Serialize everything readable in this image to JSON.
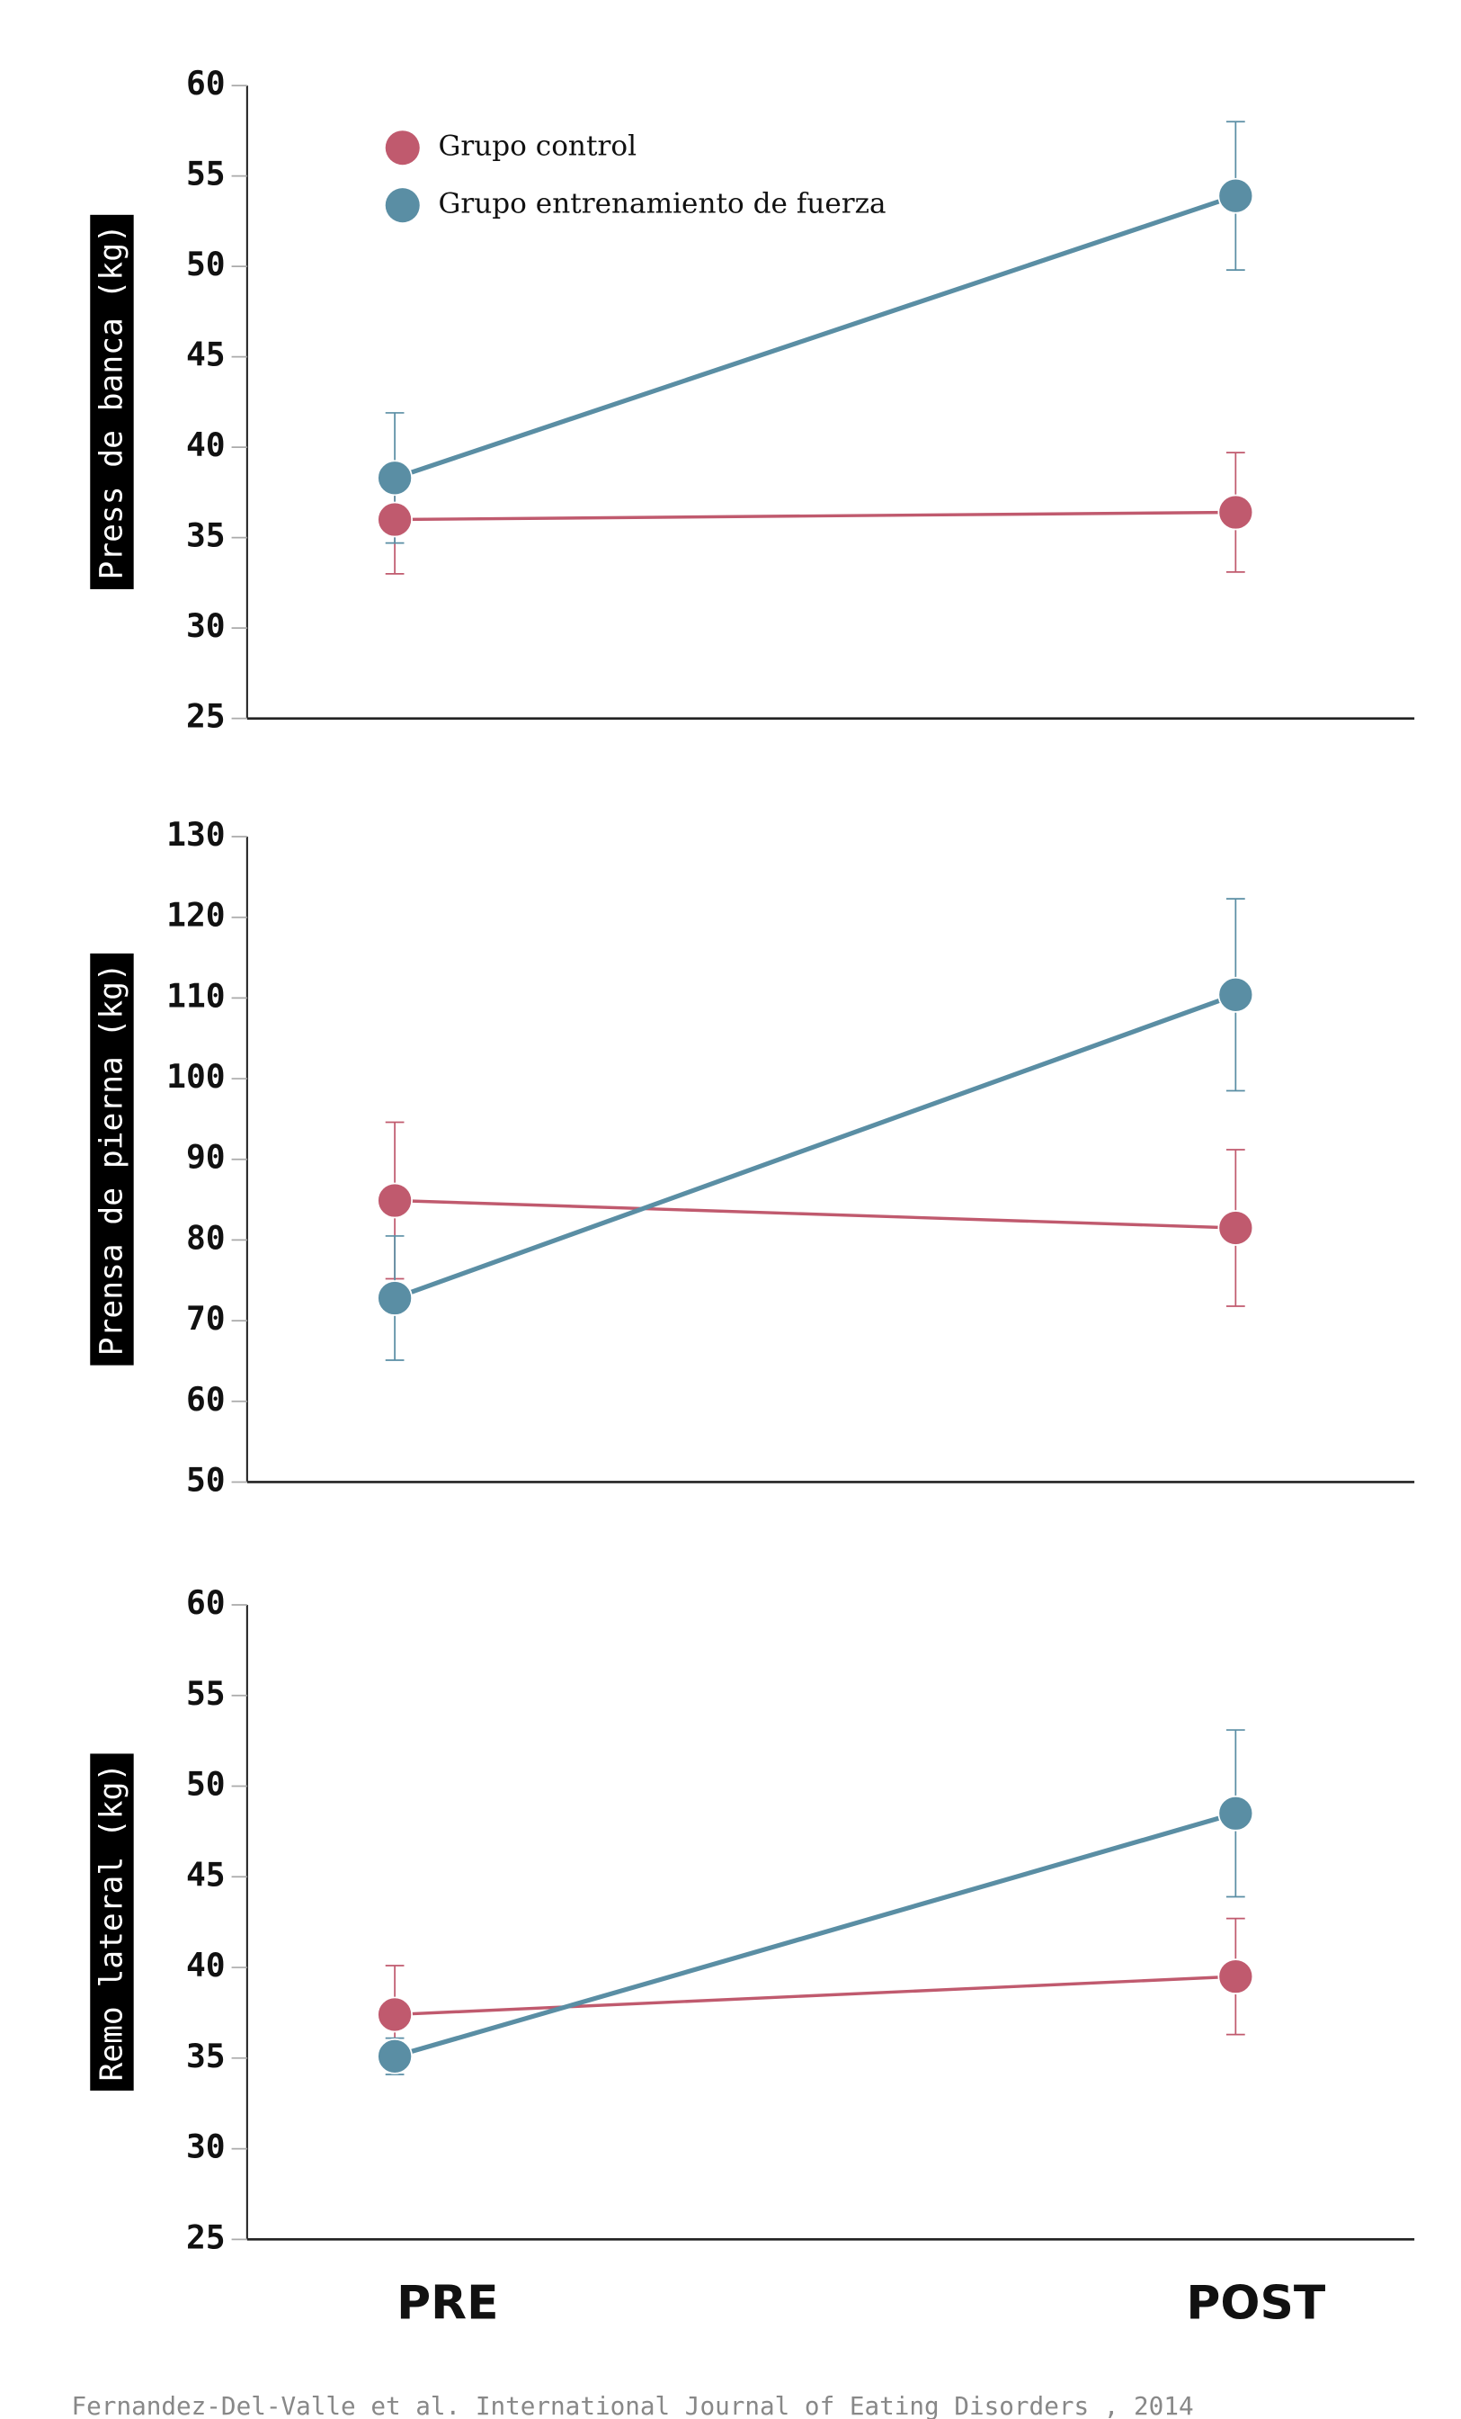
{
  "chart_data": [
    {
      "type": "line",
      "ylabel": "Press de banca (kg)",
      "ylim": [
        25,
        60
      ],
      "yticks": [
        25,
        30,
        35,
        40,
        45,
        50,
        55,
        60
      ],
      "legend": "upper left",
      "series": [
        {
          "name": "Grupo control",
          "color": "#c05a6e",
          "values": [
            36.0,
            36.4
          ],
          "errors": [
            3.0,
            3.3
          ]
        },
        {
          "name": "Grupo entrenamiento de fuerza",
          "color": "#5a8ea4",
          "values": [
            38.3,
            53.9
          ],
          "errors": [
            3.6,
            4.1
          ]
        }
      ]
    },
    {
      "type": "line",
      "ylabel": "Prensa de pierna (kg)",
      "ylim": [
        50,
        130
      ],
      "yticks": [
        50,
        60,
        70,
        80,
        90,
        100,
        110,
        120,
        130
      ],
      "series": [
        {
          "color": "#c05a6e",
          "values": [
            84.9,
            81.5
          ],
          "errors": [
            9.7,
            9.7
          ]
        },
        {
          "color": "#5a8ea4",
          "values": [
            72.8,
            110.4
          ],
          "errors": [
            7.7,
            11.9
          ]
        }
      ]
    },
    {
      "type": "line",
      "ylabel": "Remo lateral (kg)",
      "ylim": [
        25,
        60
      ],
      "yticks": [
        25,
        30,
        35,
        40,
        45,
        50,
        55,
        60
      ],
      "categories": [
        "PRE",
        "POST"
      ],
      "series": [
        {
          "color": "#c05a6e",
          "values": [
            37.4,
            39.5
          ],
          "errors": [
            2.7,
            3.2
          ]
        },
        {
          "color": "#5a8ea4",
          "values": [
            35.1,
            48.5
          ],
          "errors": [
            1.0,
            4.6
          ]
        }
      ]
    }
  ],
  "source": "Fernandez-Del-Valle et al. International Journal of Eating Disorders , 2014"
}
